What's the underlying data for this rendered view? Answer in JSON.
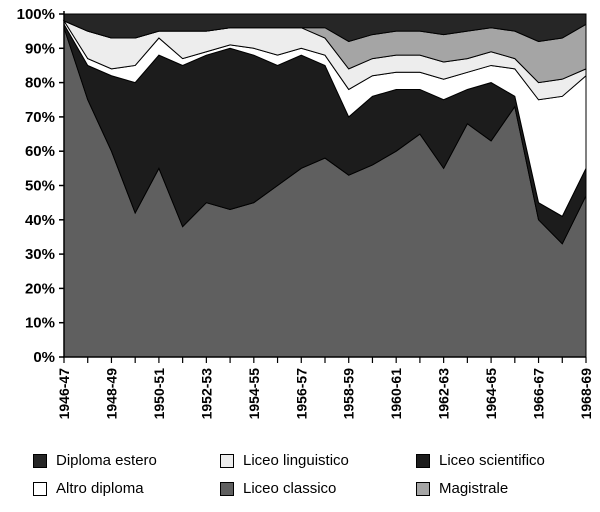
{
  "chart_data": {
    "type": "area",
    "stacking": "percent",
    "title": "",
    "xlabel": "",
    "ylabel": "",
    "grid": false,
    "legend_position": "bottom",
    "categories": [
      "1946-47",
      "1947-48",
      "1948-49",
      "1949-50",
      "1950-51",
      "1951-52",
      "1952-53",
      "1953-54",
      "1954-55",
      "1955-56",
      "1956-57",
      "1957-58",
      "1958-59",
      "1959-60",
      "1960-61",
      "1961-62",
      "1962-63",
      "1963-64",
      "1964-65",
      "1965-66",
      "1966-67",
      "1967-68",
      "1968-69"
    ],
    "x_tick_labels": [
      "1946-47",
      "1948-49",
      "1950-51",
      "1952-53",
      "1954-55",
      "1956-57",
      "1958-59",
      "1960-61",
      "1962-63",
      "1964-65",
      "1966-67",
      "1968-69"
    ],
    "y_tick_labels": [
      "100%",
      "90%",
      "80%",
      "70%",
      "60%",
      "50%",
      "40%",
      "30%",
      "20%",
      "10%",
      "0%"
    ],
    "y_axis": {
      "min": 0,
      "max": 100,
      "step": 10,
      "format": "percent"
    },
    "stack_order": "bottom_to_top",
    "series": [
      {
        "name": "Liceo classico",
        "color": "#5f5f5f",
        "values": [
          96,
          75,
          60,
          42,
          55,
          38,
          45,
          43,
          45,
          50,
          55,
          58,
          53,
          56,
          60,
          65,
          55,
          68,
          63,
          73,
          40,
          33,
          47
        ]
      },
      {
        "name": "Liceo scientifico",
        "color": "#1c1c1c",
        "values": [
          1,
          10,
          22,
          38,
          33,
          47,
          43,
          47,
          43,
          35,
          33,
          27,
          17,
          20,
          18,
          13,
          20,
          10,
          17,
          3,
          5,
          8,
          8
        ]
      },
      {
        "name": "Altro diploma",
        "color": "#ffffff",
        "values": [
          1,
          2,
          2,
          5,
          5,
          2,
          1,
          1,
          2,
          3,
          2,
          3,
          8,
          6,
          5,
          5,
          6,
          5,
          5,
          8,
          30,
          35,
          27
        ]
      },
      {
        "name": "Liceo linguistico",
        "color": "#ededed",
        "values": [
          0,
          8,
          9,
          8,
          2,
          8,
          6,
          5,
          6,
          8,
          6,
          5,
          6,
          5,
          5,
          5,
          5,
          4,
          4,
          3,
          5,
          5,
          2
        ]
      },
      {
        "name": "Magistrale",
        "color": "#a5a5a5",
        "values": [
          0,
          0,
          0,
          0,
          0,
          0,
          0,
          0,
          0,
          0,
          0,
          3,
          8,
          7,
          7,
          7,
          8,
          8,
          7,
          8,
          12,
          12,
          13
        ]
      },
      {
        "name": "Diploma estero",
        "color": "#262626",
        "values": [
          2,
          5,
          7,
          7,
          5,
          5,
          5,
          4,
          4,
          4,
          4,
          4,
          8,
          6,
          5,
          5,
          6,
          5,
          4,
          5,
          8,
          7,
          3
        ]
      }
    ],
    "legend_order": [
      "Diploma estero",
      "Liceo linguistico",
      "Liceo scientifico",
      "Altro diploma",
      "Liceo classico",
      "Magistrale"
    ]
  }
}
